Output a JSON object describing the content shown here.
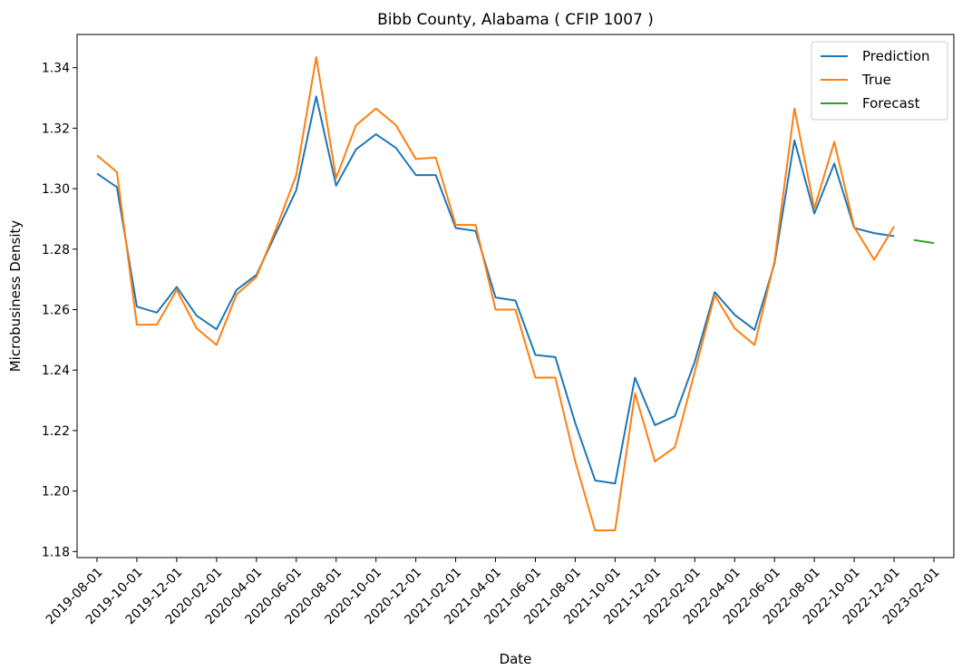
{
  "chart_data": {
    "type": "line",
    "title": "Bibb County, Alabama ( CFIP 1007 )",
    "xlabel": "Date",
    "ylabel": "Microbusiness Density",
    "ylim": [
      1.178,
      1.351
    ],
    "xlim": [
      "2019-07-01",
      "2023-03-01"
    ],
    "grid": false,
    "legend_position": "top-right",
    "x_ticks": [
      "2019-08-01",
      "2019-10-01",
      "2019-12-01",
      "2020-02-01",
      "2020-04-01",
      "2020-06-01",
      "2020-08-01",
      "2020-10-01",
      "2020-12-01",
      "2021-02-01",
      "2021-04-01",
      "2021-06-01",
      "2021-08-01",
      "2021-10-01",
      "2021-12-01",
      "2022-02-01",
      "2022-04-01",
      "2022-06-01",
      "2022-08-01",
      "2022-10-01",
      "2022-12-01",
      "2023-02-01"
    ],
    "y_ticks": [
      "1.18",
      "1.20",
      "1.22",
      "1.24",
      "1.26",
      "1.28",
      "1.30",
      "1.32",
      "1.34"
    ],
    "series": [
      {
        "name": "Prediction",
        "color": "#1f77b4",
        "x": [
          "2019-08-01",
          "2019-09-01",
          "2019-10-01",
          "2019-11-01",
          "2019-12-01",
          "2020-01-01",
          "2020-02-01",
          "2020-03-01",
          "2020-04-01",
          "2020-05-01",
          "2020-06-01",
          "2020-07-01",
          "2020-08-01",
          "2020-09-01",
          "2020-10-01",
          "2020-11-01",
          "2020-12-01",
          "2021-01-01",
          "2021-02-01",
          "2021-03-01",
          "2021-04-01",
          "2021-05-01",
          "2021-06-01",
          "2021-07-01",
          "2021-08-01",
          "2021-09-01",
          "2021-10-01",
          "2021-11-01",
          "2021-12-01",
          "2022-01-01",
          "2022-02-01",
          "2022-03-01",
          "2022-04-01",
          "2022-05-01",
          "2022-06-01",
          "2022-07-01",
          "2022-08-01",
          "2022-09-01",
          "2022-10-01",
          "2022-11-01",
          "2022-12-01"
        ],
        "y": [
          1.305,
          1.3005,
          1.261,
          1.259,
          1.2675,
          1.258,
          1.2535,
          1.2665,
          1.2715,
          1.2855,
          1.2995,
          1.3305,
          1.301,
          1.313,
          1.318,
          1.3135,
          1.3045,
          1.3045,
          1.287,
          1.286,
          1.264,
          1.263,
          1.245,
          1.2443,
          1.2225,
          1.2035,
          1.2025,
          1.2375,
          1.2218,
          1.2248,
          1.2428,
          1.2658,
          1.2583,
          1.2533,
          1.2753,
          1.316,
          1.2918,
          1.3083,
          1.287,
          1.2853,
          1.2843
        ]
      },
      {
        "name": "True",
        "color": "#ff7f0e",
        "x": [
          "2019-08-01",
          "2019-09-01",
          "2019-10-01",
          "2019-11-01",
          "2019-12-01",
          "2020-01-01",
          "2020-02-01",
          "2020-03-01",
          "2020-04-01",
          "2020-05-01",
          "2020-06-01",
          "2020-07-01",
          "2020-08-01",
          "2020-09-01",
          "2020-10-01",
          "2020-11-01",
          "2020-12-01",
          "2021-01-01",
          "2021-02-01",
          "2021-03-01",
          "2021-04-01",
          "2021-05-01",
          "2021-06-01",
          "2021-07-01",
          "2021-08-01",
          "2021-09-01",
          "2021-10-01",
          "2021-11-01",
          "2021-12-01",
          "2022-01-01",
          "2022-02-01",
          "2022-03-01",
          "2022-04-01",
          "2022-05-01",
          "2022-06-01",
          "2022-07-01",
          "2022-08-01",
          "2022-09-01",
          "2022-10-01",
          "2022-11-01",
          "2022-12-01"
        ],
        "y": [
          1.311,
          1.3055,
          1.255,
          1.255,
          1.2665,
          1.2538,
          1.2483,
          1.265,
          1.2708,
          1.287,
          1.3045,
          1.3435,
          1.3035,
          1.321,
          1.3265,
          1.321,
          1.3098,
          1.3103,
          1.288,
          1.288,
          1.26,
          1.26,
          1.2375,
          1.2375,
          1.2098,
          1.187,
          1.187,
          1.2323,
          1.2098,
          1.2145,
          1.2395,
          1.2648,
          1.2538,
          1.2483,
          1.276,
          1.3265,
          1.2935,
          1.3155,
          1.2873,
          1.2765,
          1.2875
        ]
      },
      {
        "name": "Forecast",
        "color": "#2ca02c",
        "x": [
          "2023-01-01",
          "2023-02-01"
        ],
        "y": [
          1.283,
          1.282
        ]
      }
    ]
  }
}
